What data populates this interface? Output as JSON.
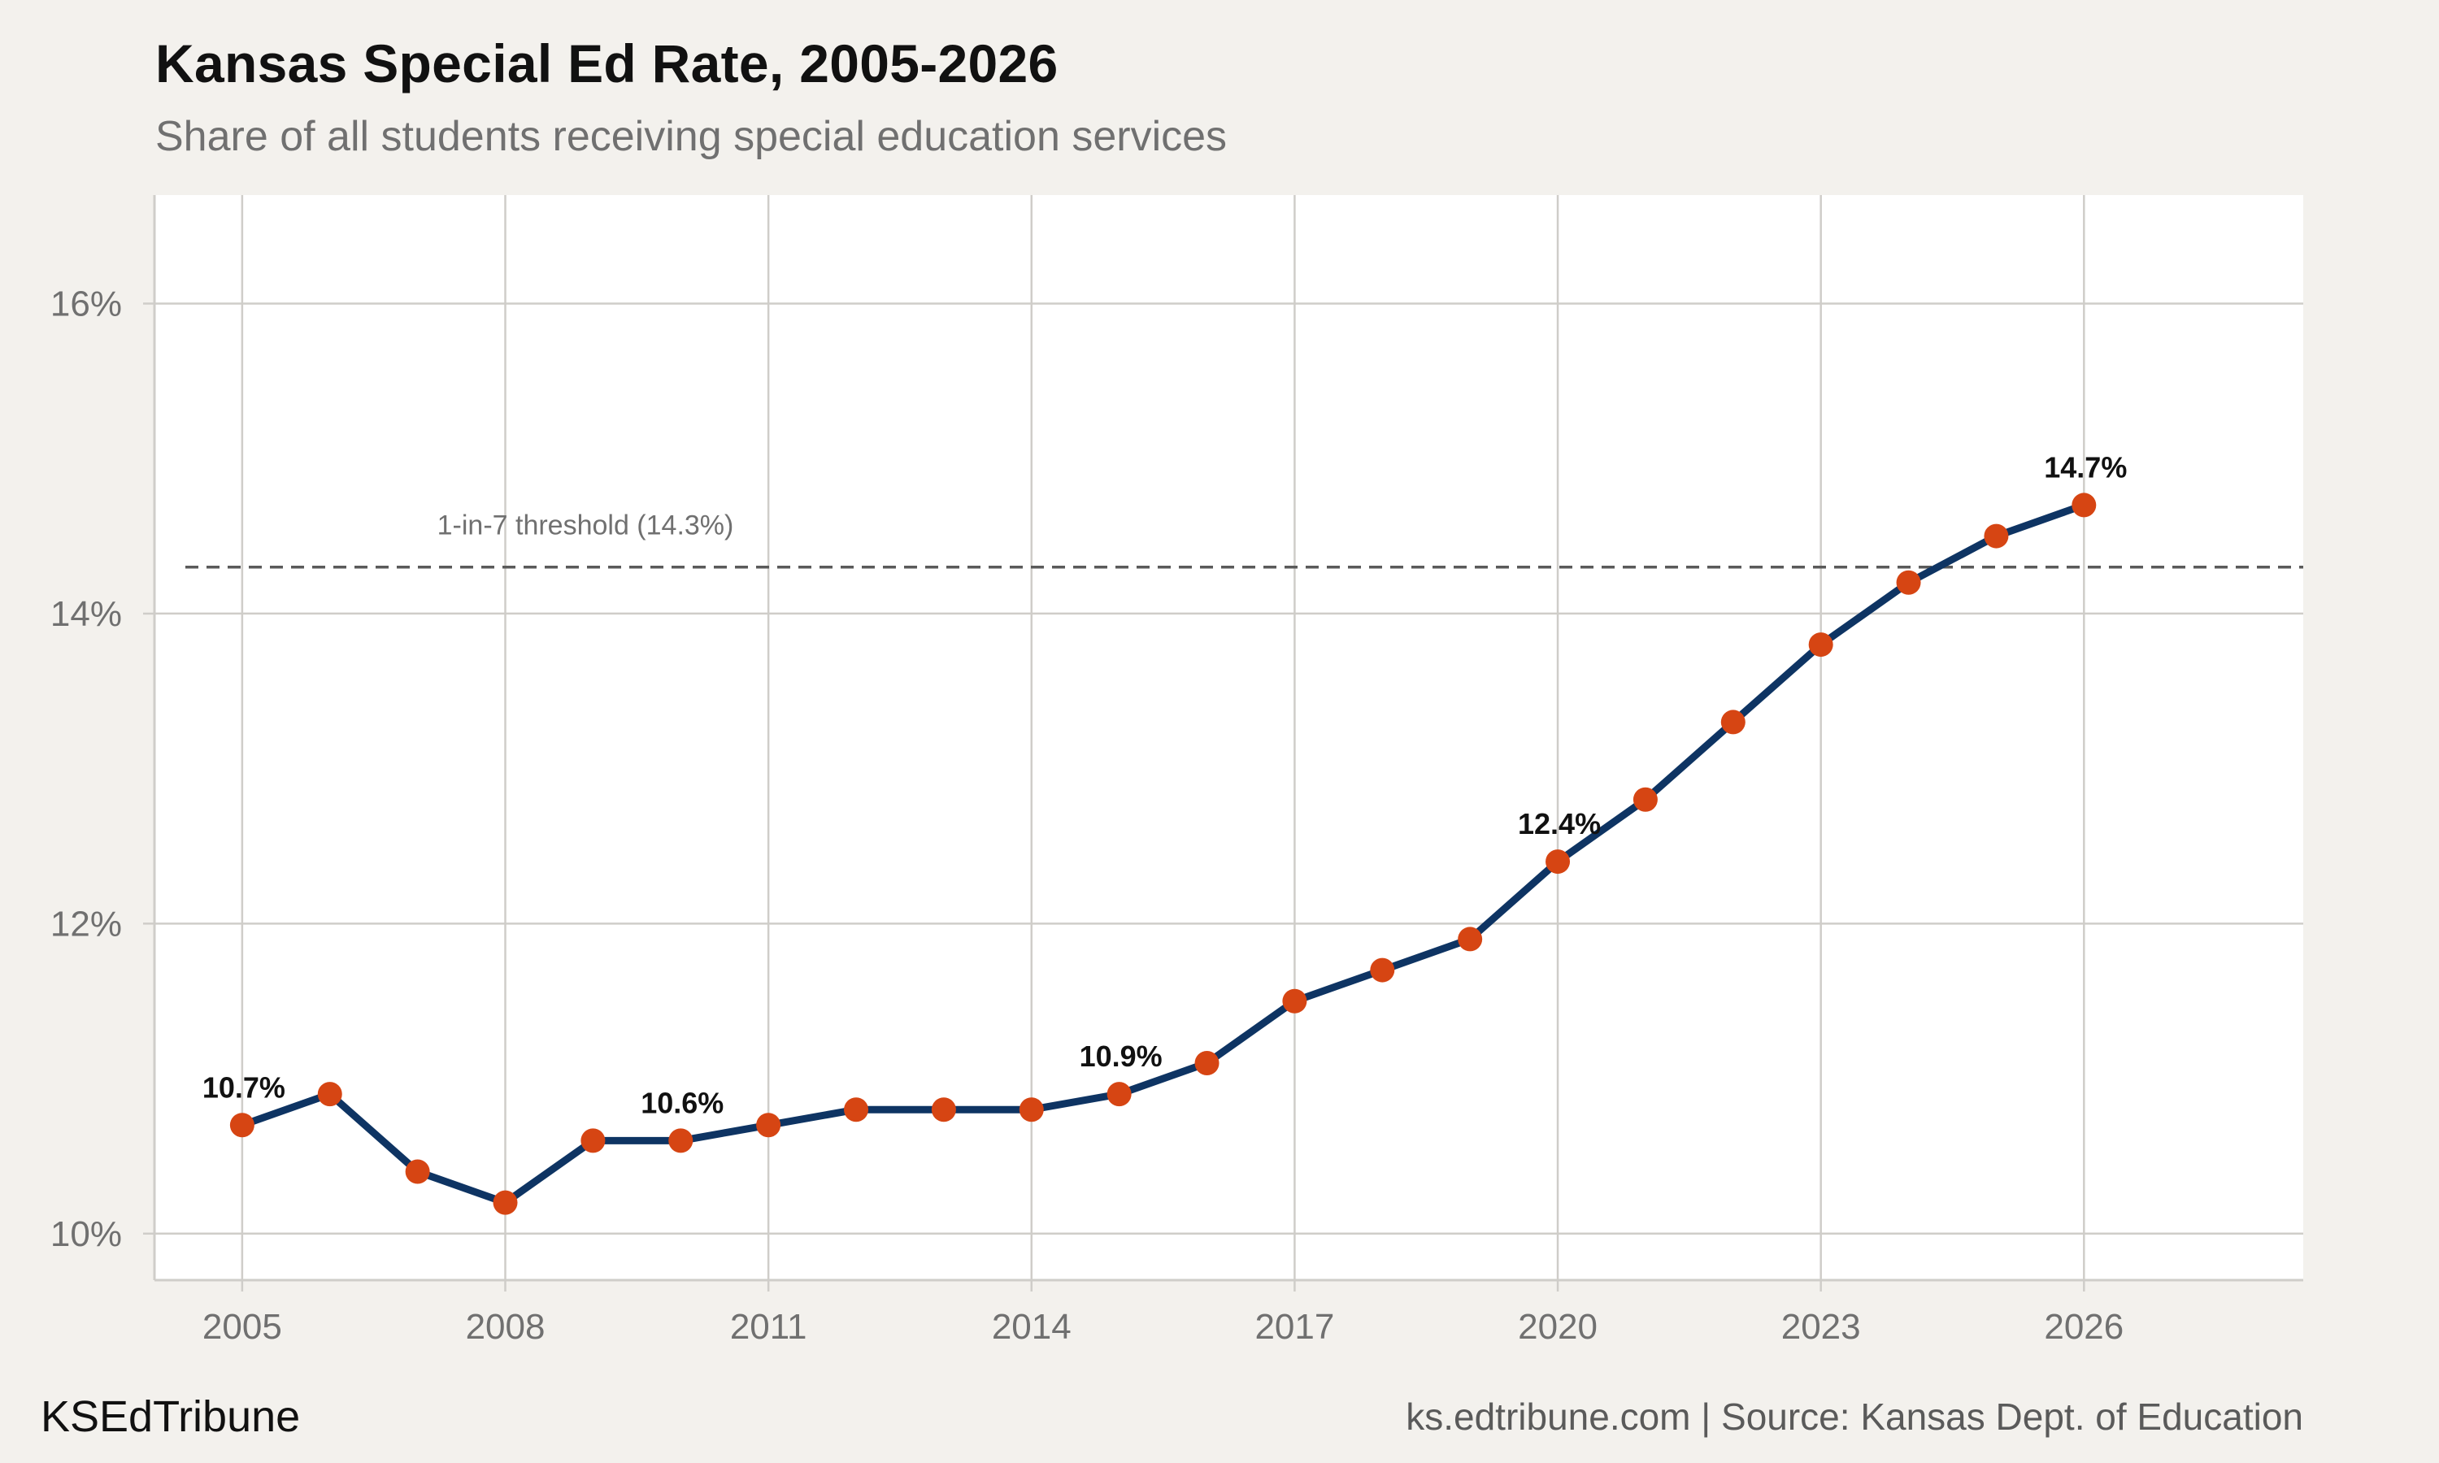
{
  "colors": {
    "background": "#f3f1ed",
    "panel": "#ffffff",
    "grid": "#cfcdc9",
    "line": "#0e3463",
    "point": "#d64513",
    "threshold": "#5a5a5a",
    "text_muted": "#707070"
  },
  "footer": {
    "brand": "KSEdTribune",
    "source": "ks.edtribune.com | Source: Kansas Dept. of Education"
  },
  "chart_data": {
    "type": "line",
    "title": "Kansas Special Ed Rate, 2005-2026",
    "subtitle": "Share of all students receiving special education services",
    "xlabel": "",
    "ylabel": "",
    "x": [
      2005,
      2006,
      2007,
      2008,
      2009,
      2010,
      2011,
      2012,
      2013,
      2014,
      2015,
      2016,
      2017,
      2018,
      2019,
      2020,
      2021,
      2022,
      2023,
      2024,
      2025,
      2026
    ],
    "series": [
      {
        "values": [
          10.7,
          10.9,
          10.4,
          10.2,
          10.6,
          10.6,
          10.7,
          10.8,
          10.8,
          10.8,
          10.9,
          11.1,
          11.5,
          11.7,
          11.9,
          12.4,
          12.8,
          13.3,
          13.8,
          14.2,
          14.5,
          14.7
        ]
      }
    ],
    "xlim": [
      2004,
      2028.5
    ],
    "ylim": [
      9.7,
      16.7
    ],
    "xticks": [
      2005,
      2008,
      2011,
      2014,
      2017,
      2020,
      2023,
      2026
    ],
    "xtick_labels": [
      "2005",
      "2008",
      "2011",
      "2014",
      "2017",
      "2020",
      "2023",
      "2026"
    ],
    "yticks": [
      10,
      12,
      14,
      16
    ],
    "ytick_labels": [
      "10%",
      "12%",
      "14%",
      "16%"
    ],
    "grid": true,
    "legend": "none",
    "data_labels": [
      {
        "x": 2005,
        "y": 10.7,
        "text": "10.7%"
      },
      {
        "x": 2010,
        "y": 10.6,
        "text": "10.6%"
      },
      {
        "x": 2015,
        "y": 10.9,
        "text": "10.9%"
      },
      {
        "x": 2020,
        "y": 12.4,
        "text": "12.4%"
      },
      {
        "x": 2026,
        "y": 14.7,
        "text": "14.7%"
      }
    ],
    "reference_line": {
      "y": 14.3,
      "style": "dashed",
      "label": "1-in-7 threshold (14.3%)"
    }
  }
}
